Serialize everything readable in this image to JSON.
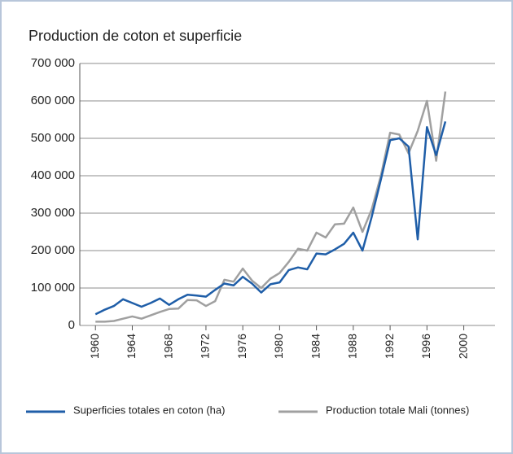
{
  "chart_data": {
    "type": "line",
    "title": "Production de coton et superficie",
    "x": [
      1960,
      1961,
      1962,
      1963,
      1964,
      1965,
      1966,
      1967,
      1968,
      1969,
      1970,
      1971,
      1972,
      1973,
      1974,
      1975,
      1976,
      1977,
      1978,
      1979,
      1980,
      1981,
      1982,
      1983,
      1984,
      1985,
      1986,
      1987,
      1988,
      1989,
      1990,
      1991,
      1992,
      1993,
      1994,
      1995,
      1996,
      1997,
      1998
    ],
    "series": [
      {
        "name": "Superficies totales en coton (ha)",
        "color": "#1f5ea8",
        "values": [
          30000,
          42000,
          52000,
          70000,
          60000,
          50000,
          60000,
          72000,
          55000,
          70000,
          82000,
          80000,
          77000,
          95000,
          112000,
          107000,
          130000,
          112000,
          88000,
          110000,
          115000,
          148000,
          155000,
          150000,
          192000,
          190000,
          203000,
          218000,
          248000,
          200000,
          290000,
          390000,
          495000,
          500000,
          478000,
          230000,
          530000,
          455000,
          545000
        ]
      },
      {
        "name": "Production totale Mali (tonnes)",
        "color": "#a0a0a0",
        "values": [
          10000,
          10000,
          12000,
          18000,
          24000,
          18000,
          27000,
          36000,
          44000,
          45000,
          68000,
          67000,
          52000,
          65000,
          122000,
          117000,
          152000,
          120000,
          100000,
          125000,
          140000,
          170000,
          205000,
          200000,
          248000,
          235000,
          270000,
          272000,
          315000,
          250000,
          310000,
          400000,
          515000,
          510000,
          460000,
          520000,
          600000,
          440000,
          625000
        ]
      }
    ],
    "xlim": [
      1958.3,
      2003.4
    ],
    "xticks": [
      1960,
      1964,
      1968,
      1972,
      1976,
      1980,
      1984,
      1988,
      1992,
      1996,
      2000
    ],
    "ylim": [
      0,
      700000
    ],
    "yticks": [
      0,
      {
        "value": 100000,
        "label": "100 000"
      },
      {
        "value": 200000,
        "label": "200 000"
      },
      {
        "value": 300000,
        "label": "300 000"
      },
      {
        "value": 400000,
        "label": "400 000"
      },
      {
        "value": 500000,
        "label": "500 000"
      },
      {
        "value": 600000,
        "label": "600 000"
      },
      {
        "value": 700000,
        "label": "700 000"
      }
    ],
    "grid": true
  }
}
